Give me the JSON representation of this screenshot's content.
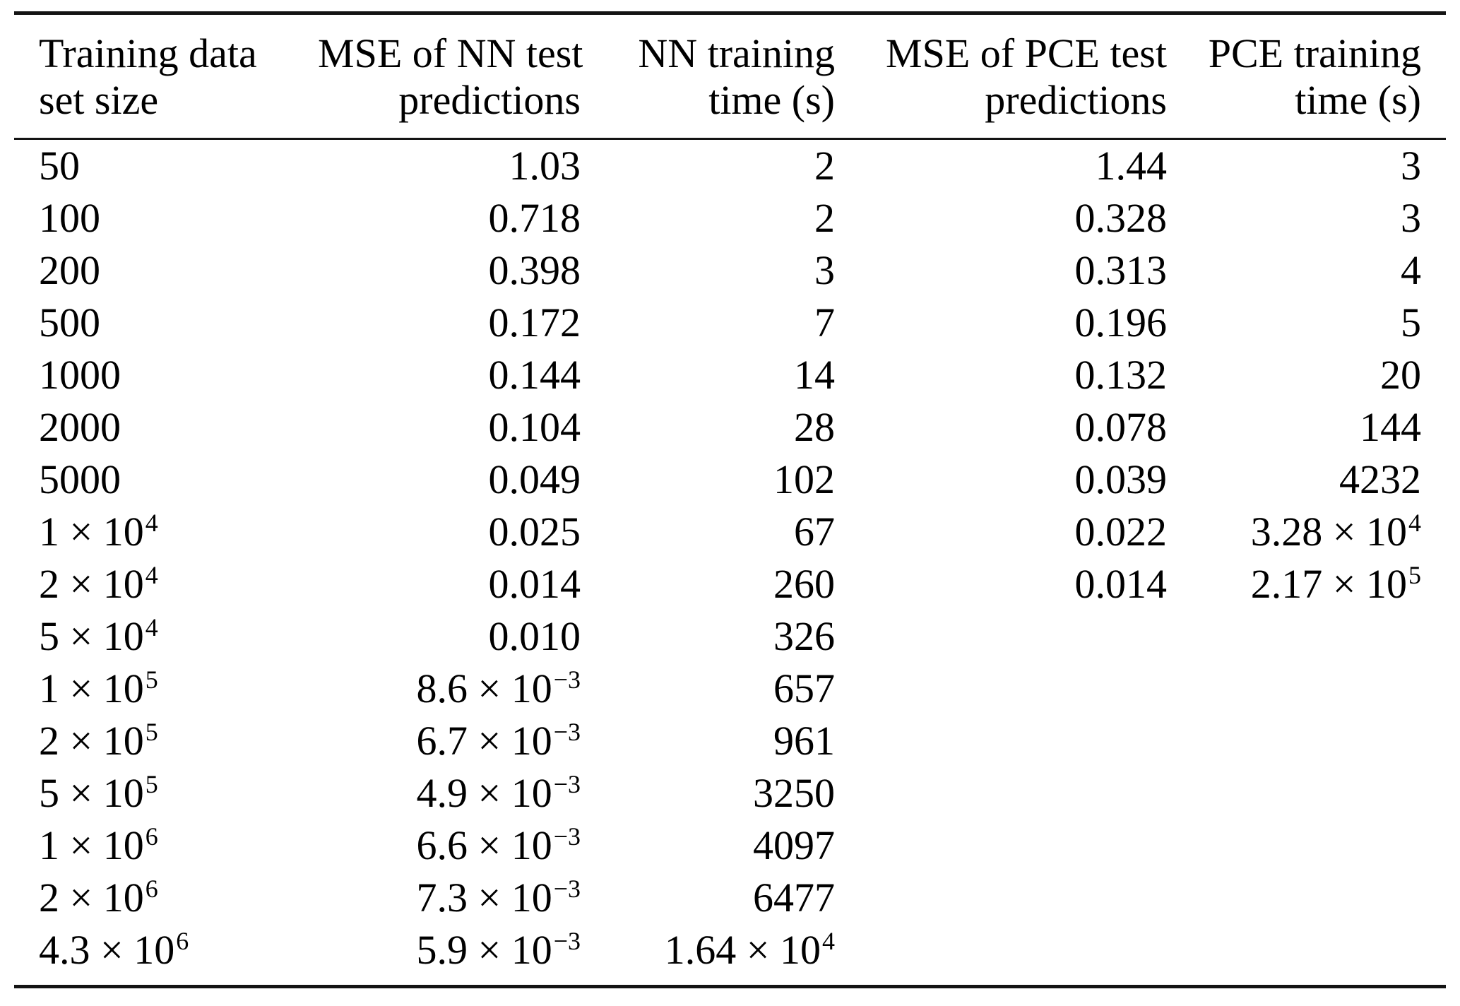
{
  "table": {
    "columns": [
      {
        "line1": "Training data",
        "line2": "set size",
        "align": "left"
      },
      {
        "line1": "MSE of NN test",
        "line2": "predictions",
        "align": "right"
      },
      {
        "line1": "NN training",
        "line2": "time (s)",
        "align": "right"
      },
      {
        "line1": "MSE of PCE test",
        "line2": "predictions",
        "align": "right"
      },
      {
        "line1": "PCE training",
        "line2": "time (s)",
        "align": "right"
      }
    ],
    "rows": [
      [
        "50",
        "1.03",
        "2",
        "1.44",
        "3"
      ],
      [
        "100",
        "0.718",
        "2",
        "0.328",
        "3"
      ],
      [
        "200",
        "0.398",
        "3",
        "0.313",
        "4"
      ],
      [
        "500",
        "0.172",
        "7",
        "0.196",
        "5"
      ],
      [
        "1000",
        "0.144",
        "14",
        "0.132",
        "20"
      ],
      [
        "2000",
        "0.104",
        "28",
        "0.078",
        "144"
      ],
      [
        "5000",
        "0.049",
        "102",
        "0.039",
        "4232"
      ],
      [
        "1 × 10^4",
        "0.025",
        "67",
        "0.022",
        "3.28 × 10^4"
      ],
      [
        "2 × 10^4",
        "0.014",
        "260",
        "0.014",
        "2.17 × 10^5"
      ],
      [
        "5 × 10^4",
        "0.010",
        "326",
        "",
        ""
      ],
      [
        "1 × 10^5",
        "8.6 × 10^−3",
        "657",
        "",
        ""
      ],
      [
        "2 × 10^5",
        "6.7 × 10^−3",
        "961",
        "",
        ""
      ],
      [
        "5 × 10^5",
        "4.9 × 10^−3",
        "3250",
        "",
        ""
      ],
      [
        "1 × 10^6",
        "6.6 × 10^−3",
        "4097",
        "",
        ""
      ],
      [
        "2 × 10^6",
        "7.3 × 10^−3",
        "6477",
        "",
        ""
      ],
      [
        "4.3 × 10^6",
        "5.9 × 10^−3",
        "1.64 × 10^4",
        "",
        ""
      ]
    ],
    "rule_color": "#141414"
  }
}
